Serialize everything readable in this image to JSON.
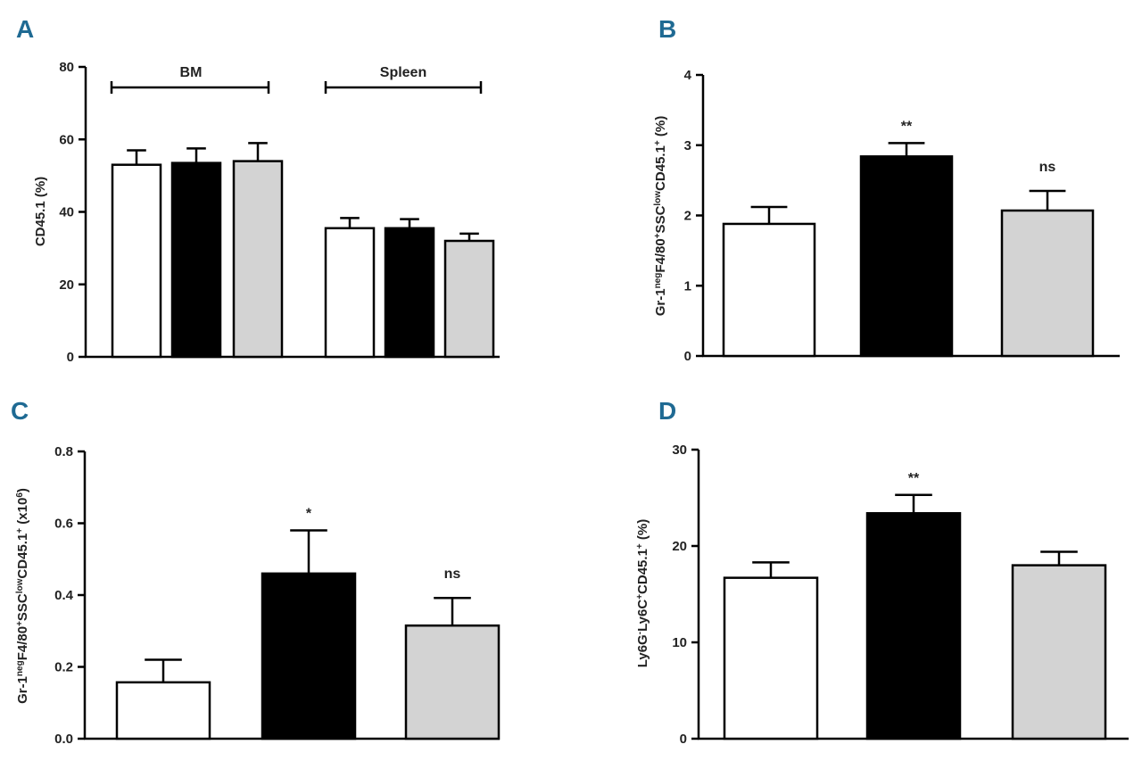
{
  "chart_data": [
    {
      "panel": "A",
      "type": "bar",
      "ylabel": "CD45.1 (%)",
      "ylim": [
        0,
        80
      ],
      "yticks": [
        0,
        20,
        40,
        60,
        80
      ],
      "ytick_labels": [
        "0",
        "20",
        "40",
        "60",
        "80"
      ],
      "groups": [
        {
          "label": "BM",
          "values": [
            53,
            53.5,
            54
          ],
          "errors": [
            4,
            4,
            5
          ]
        },
        {
          "label": "Spleen",
          "values": [
            35.5,
            35.5,
            32
          ],
          "errors": [
            2.8,
            2.5,
            2
          ]
        }
      ],
      "bar_colors": [
        "#ffffff",
        "#000000",
        "#d3d3d3"
      ],
      "significance": []
    },
    {
      "panel": "B",
      "type": "bar",
      "ylabel": "Gr-1negF4/80+SSClowCD45.1+ (%)",
      "ylabel_parts": [
        {
          "t": "Gr-1",
          "sup": false
        },
        {
          "t": "neg",
          "sup": true
        },
        {
          "t": "F4/80",
          "sup": false
        },
        {
          "t": "+",
          "sup": true
        },
        {
          "t": "SSC",
          "sup": false
        },
        {
          "t": "low",
          "sup": true
        },
        {
          "t": "CD45.1",
          "sup": false
        },
        {
          "t": "+",
          "sup": true
        },
        {
          "t": " (%)",
          "sup": false
        }
      ],
      "ylim": [
        0,
        4
      ],
      "yticks": [
        0,
        1,
        2,
        3,
        4
      ],
      "ytick_labels": [
        "0",
        "1",
        "2",
        "3",
        "4"
      ],
      "values": [
        1.88,
        2.84,
        2.07
      ],
      "errors": [
        0.24,
        0.19,
        0.28
      ],
      "bar_colors": [
        "#ffffff",
        "#000000",
        "#d3d3d3"
      ],
      "significance": [
        "",
        "**",
        "ns"
      ]
    },
    {
      "panel": "C",
      "type": "bar",
      "ylabel": "Gr-1negF4/80+SSClowCD45.1+ (x106)",
      "ylabel_parts": [
        {
          "t": "Gr-1",
          "sup": false
        },
        {
          "t": "neg",
          "sup": true
        },
        {
          "t": "F4/80",
          "sup": false
        },
        {
          "t": "+",
          "sup": true
        },
        {
          "t": "SSC",
          "sup": false
        },
        {
          "t": "low",
          "sup": true
        },
        {
          "t": "CD45.1",
          "sup": false
        },
        {
          "t": "+",
          "sup": true
        },
        {
          "t": " (x10",
          "sup": false
        },
        {
          "t": "6",
          "sup": true
        },
        {
          "t": ")",
          "sup": false
        }
      ],
      "ylim": [
        0,
        0.8
      ],
      "yticks": [
        0,
        0.2,
        0.4,
        0.6,
        0.8
      ],
      "ytick_labels": [
        "0.0",
        "0.2",
        "0.4",
        "0.6",
        "0.8"
      ],
      "values": [
        0.157,
        0.46,
        0.315
      ],
      "errors": [
        0.063,
        0.12,
        0.077
      ],
      "bar_colors": [
        "#ffffff",
        "#000000",
        "#d3d3d3"
      ],
      "significance": [
        "",
        "*",
        "ns"
      ]
    },
    {
      "panel": "D",
      "type": "bar",
      "ylabel": "Ly6G-Ly6C+CD45.1+ (%)",
      "ylabel_parts": [
        {
          "t": "Ly6G",
          "sup": false
        },
        {
          "t": "-",
          "sup": true
        },
        {
          "t": "Ly6C",
          "sup": false
        },
        {
          "t": "+",
          "sup": true
        },
        {
          "t": "CD45.1",
          "sup": false
        },
        {
          "t": "+",
          "sup": true
        },
        {
          "t": " (%)",
          "sup": false
        }
      ],
      "ylim": [
        0,
        30
      ],
      "yticks": [
        0,
        10,
        20,
        30
      ],
      "ytick_labels": [
        "0",
        "10",
        "20",
        "30"
      ],
      "values": [
        16.7,
        23.4,
        18
      ],
      "errors": [
        1.6,
        1.9,
        1.4
      ],
      "bar_colors": [
        "#ffffff",
        "#000000",
        "#d3d3d3"
      ],
      "significance": [
        "",
        "**",
        ""
      ]
    }
  ]
}
